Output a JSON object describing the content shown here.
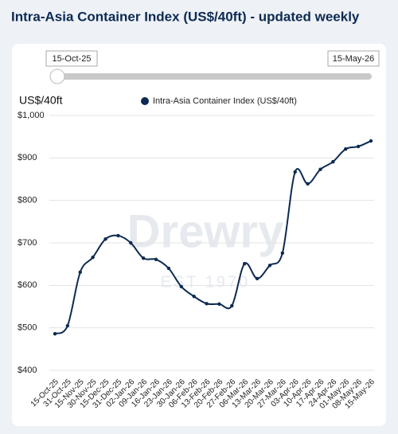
{
  "chart_data": {
    "type": "line",
    "title": "Intra-Asia Container Index (US$/40ft) - updated weekly",
    "range_start": "15-Oct-25",
    "range_end": "15-May-26",
    "y_axis_label": "US$/40ft",
    "watermark": [
      "Drewry",
      "EST 1970"
    ],
    "categories": [
      "15-Oct-25",
      "31-Oct-25",
      "15-Nov-25",
      "30-Nov-25",
      "15-Dec-25",
      "31-Dec-25",
      "02-Jan-26",
      "09-Jan-26",
      "16-Jan-26",
      "23-Jan-26",
      "30-Jan-26",
      "06-Feb-26",
      "13-Feb-26",
      "20-Feb-26",
      "27-Feb-26",
      "06-Mar-26",
      "13-Mar-26",
      "20-Mar-26",
      "27-Mar-26",
      "03-Apr-26",
      "10-Apr-26",
      "17-Apr-26",
      "24-Apr-26",
      "01-May-26",
      "08-May-26",
      "15-May-26"
    ],
    "series": [
      {
        "name": "Intra-Asia Container Index (US$/40ft)",
        "color": "#0d2a52",
        "values": [
          486,
          505,
          631,
          666,
          709,
          717,
          700,
          664,
          661,
          640,
          597,
          574,
          557,
          556,
          552,
          651,
          616,
          647,
          676,
          867,
          839,
          873,
          891,
          921,
          927,
          940
        ]
      }
    ],
    "ylim": [
      400,
      1000
    ],
    "yticks": [
      {
        "value": 400,
        "label": "$400"
      },
      {
        "value": 500,
        "label": "$500"
      },
      {
        "value": 600,
        "label": "$600"
      },
      {
        "value": 700,
        "label": "$700"
      },
      {
        "value": 800,
        "label": "$800"
      },
      {
        "value": 900,
        "label": "$900"
      },
      {
        "value": 1000,
        "label": "$1,000"
      }
    ],
    "grid": true
  }
}
